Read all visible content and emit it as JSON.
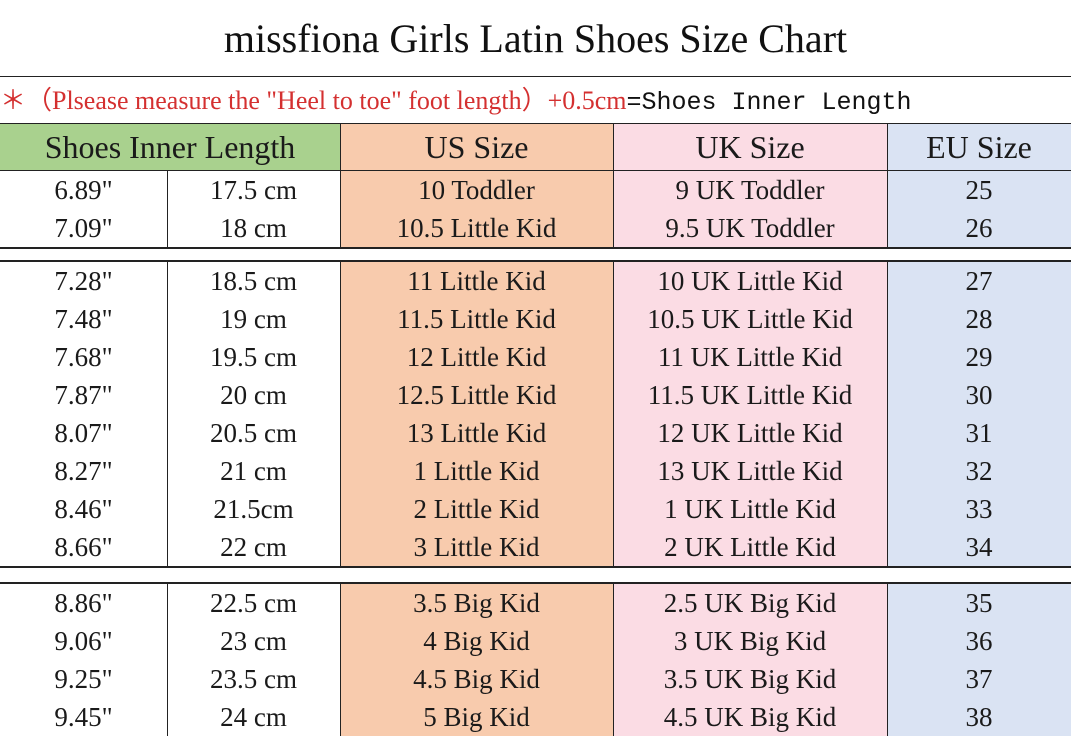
{
  "title": "missfiona Girls Latin Shoes Size Chart",
  "note": {
    "prefix": "＊（Plsease measure the \"Heel to toe\"  foot length）+0.5cm",
    "suffix": "=Shoes Inner Length"
  },
  "headers": {
    "inner_length": "Shoes Inner Length",
    "us": "US Size",
    "uk": "UK Size",
    "eu": "EU Size"
  },
  "colors": {
    "green": "#a9d18e",
    "orange": "#f8cbad",
    "pink": "#fbdce4",
    "blue": "#dae3f3",
    "note_red": "#d43030"
  },
  "groups": [
    [
      {
        "inch": "6.89\"",
        "cm": "17.5 cm",
        "us": "10 Toddler",
        "uk": "9 UK Toddler",
        "eu": "25"
      },
      {
        "inch": "7.09\"",
        "cm": "18 cm",
        "us": "10.5 Little Kid",
        "uk": "9.5 UK Toddler",
        "eu": "26"
      }
    ],
    [
      {
        "inch": "7.28\"",
        "cm": "18.5 cm",
        "us": "11 Little Kid",
        "uk": "10 UK Little Kid",
        "eu": "27"
      },
      {
        "inch": "7.48\"",
        "cm": "19 cm",
        "us": "11.5 Little Kid",
        "uk": "10.5 UK Little Kid",
        "eu": "28"
      },
      {
        "inch": "7.68\"",
        "cm": "19.5 cm",
        "us": "12 Little Kid",
        "uk": "11 UK Little Kid",
        "eu": "29"
      },
      {
        "inch": "7.87\"",
        "cm": "20 cm",
        "us": "12.5 Little Kid",
        "uk": "11.5 UK Little Kid",
        "eu": "30"
      },
      {
        "inch": "8.07\"",
        "cm": "20.5 cm",
        "us": "13 Little Kid",
        "uk": "12 UK Little Kid",
        "eu": "31"
      },
      {
        "inch": "8.27\"",
        "cm": "21 cm",
        "us": "1 Little Kid",
        "uk": "13 UK Little Kid",
        "eu": "32"
      },
      {
        "inch": "8.46\"",
        "cm": "21.5cm",
        "us": "2 Little Kid",
        "uk": "1 UK Little Kid",
        "eu": "33"
      },
      {
        "inch": "8.66\"",
        "cm": "22 cm",
        "us": "3 Little Kid",
        "uk": "2 UK Little Kid",
        "eu": "34"
      }
    ],
    [
      {
        "inch": "8.86\"",
        "cm": "22.5 cm",
        "us": "3.5 Big Kid",
        "uk": "2.5 UK Big Kid",
        "eu": "35"
      },
      {
        "inch": "9.06\"",
        "cm": "23 cm",
        "us": "4 Big Kid",
        "uk": "3 UK Big Kid",
        "eu": "36"
      },
      {
        "inch": "9.25\"",
        "cm": "23.5 cm",
        "us": "4.5 Big Kid",
        "uk": "3.5 UK Big Kid",
        "eu": "37"
      },
      {
        "inch": "9.45\"",
        "cm": "24 cm",
        "us": "5 Big Kid",
        "uk": "4.5 UK Big Kid",
        "eu": "38"
      }
    ]
  ]
}
